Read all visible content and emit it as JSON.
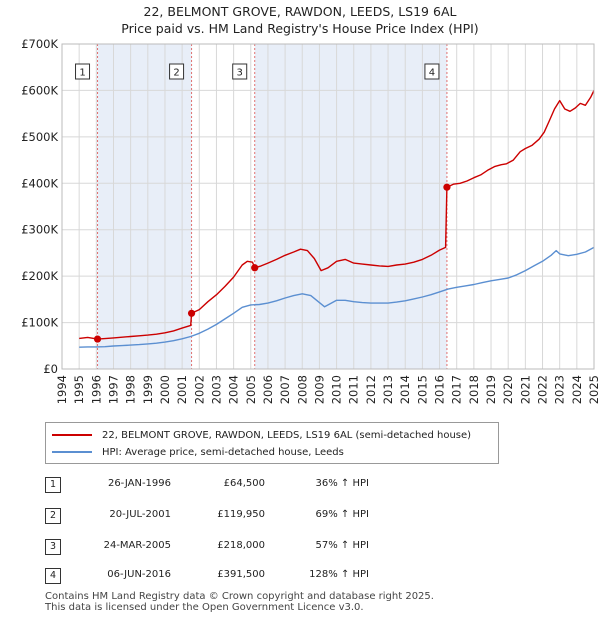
{
  "title_line1": "22, BELMONT GROVE, RAWDON, LEEDS, LS19 6AL",
  "title_line2": "Price paid vs. HM Land Registry's House Price Index (HPI)",
  "legend": {
    "property_label": "22, BELMONT GROVE, RAWDON, LEEDS, LS19 6AL (semi-detached house)",
    "hpi_label": "HPI: Average price, semi-detached house, Leeds"
  },
  "colors": {
    "property": "#cc0000",
    "hpi": "#5b8fd1",
    "shade": "#e8eef8",
    "marker_line": "#e07070"
  },
  "transactions": [
    {
      "num": "1",
      "date": "26-JAN-1996",
      "price": "£64,500",
      "hpi": "36% ↑ HPI"
    },
    {
      "num": "2",
      "date": "20-JUL-2001",
      "price": "£119,950",
      "hpi": "69% ↑ HPI"
    },
    {
      "num": "3",
      "date": "24-MAR-2005",
      "price": "£218,000",
      "hpi": "57% ↑ HPI"
    },
    {
      "num": "4",
      "date": "06-JUN-2016",
      "price": "£391,500",
      "hpi": "128% ↑ HPI"
    }
  ],
  "footer_line1": "Contains HM Land Registry data © Crown copyright and database right 2025.",
  "footer_line2": "This data is licensed under the Open Government Licence v3.0.",
  "chart_data": {
    "type": "line",
    "title": "Price paid vs. HM Land Registry's House Price Index (HPI)",
    "xlabel": "",
    "ylabel": "",
    "xlim": [
      1994,
      2025
    ],
    "ylim": [
      0,
      700000
    ],
    "x_ticks": [
      "1994",
      "1995",
      "1996",
      "1997",
      "1998",
      "1999",
      "2000",
      "2001",
      "2002",
      "2003",
      "2004",
      "2005",
      "2006",
      "2007",
      "2008",
      "2009",
      "2010",
      "2011",
      "2012",
      "2013",
      "2014",
      "2015",
      "2016",
      "2017",
      "2018",
      "2019",
      "2020",
      "2021",
      "2022",
      "2023",
      "2024",
      "2025"
    ],
    "y_ticks": [
      {
        "value": 0,
        "label": "£0"
      },
      {
        "value": 100000,
        "label": "£100K"
      },
      {
        "value": 200000,
        "label": "£200K"
      },
      {
        "value": 300000,
        "label": "£300K"
      },
      {
        "value": 400000,
        "label": "£400K"
      },
      {
        "value": 500000,
        "label": "£500K"
      },
      {
        "value": 600000,
        "label": "£600K"
      },
      {
        "value": 700000,
        "label": "£700K"
      }
    ],
    "sales": [
      {
        "label": "1",
        "x": 1996.07,
        "y": 64500
      },
      {
        "label": "2",
        "x": 2001.55,
        "y": 119950
      },
      {
        "label": "3",
        "x": 2005.23,
        "y": 218000
      },
      {
        "label": "4",
        "x": 2016.43,
        "y": 391500
      }
    ],
    "series": [
      {
        "name": "22, BELMONT GROVE, RAWDON, LEEDS, LS19 6AL (semi-detached house)",
        "points": [
          [
            1995.0,
            66000
          ],
          [
            1995.5,
            68000
          ],
          [
            1996.07,
            64500
          ],
          [
            1996.5,
            65500
          ],
          [
            1997.0,
            67000
          ],
          [
            1997.5,
            68500
          ],
          [
            1998.0,
            70000
          ],
          [
            1998.5,
            71500
          ],
          [
            1999.0,
            73000
          ],
          [
            1999.5,
            75000
          ],
          [
            2000.0,
            78000
          ],
          [
            2000.5,
            82000
          ],
          [
            2001.0,
            88000
          ],
          [
            2001.5,
            94000
          ],
          [
            2001.55,
            119950
          ],
          [
            2002.0,
            128000
          ],
          [
            2002.5,
            145000
          ],
          [
            2003.0,
            160000
          ],
          [
            2003.5,
            178000
          ],
          [
            2004.0,
            198000
          ],
          [
            2004.5,
            224000
          ],
          [
            2004.8,
            232000
          ],
          [
            2005.1,
            230000
          ],
          [
            2005.23,
            218000
          ],
          [
            2005.6,
            222000
          ],
          [
            2006.0,
            228000
          ],
          [
            2006.5,
            236000
          ],
          [
            2007.0,
            245000
          ],
          [
            2007.5,
            252000
          ],
          [
            2007.9,
            258000
          ],
          [
            2008.3,
            255000
          ],
          [
            2008.7,
            238000
          ],
          [
            2009.1,
            212000
          ],
          [
            2009.5,
            218000
          ],
          [
            2010.0,
            232000
          ],
          [
            2010.5,
            236000
          ],
          [
            2011.0,
            228000
          ],
          [
            2011.5,
            226000
          ],
          [
            2012.0,
            224000
          ],
          [
            2012.5,
            222000
          ],
          [
            2013.0,
            221000
          ],
          [
            2013.5,
            224000
          ],
          [
            2014.0,
            226000
          ],
          [
            2014.5,
            230000
          ],
          [
            2015.0,
            236000
          ],
          [
            2015.5,
            245000
          ],
          [
            2016.0,
            256000
          ],
          [
            2016.35,
            262000
          ],
          [
            2016.43,
            391500
          ],
          [
            2016.8,
            398000
          ],
          [
            2017.2,
            400000
          ],
          [
            2017.6,
            405000
          ],
          [
            2018.0,
            412000
          ],
          [
            2018.4,
            418000
          ],
          [
            2018.8,
            428000
          ],
          [
            2019.2,
            436000
          ],
          [
            2019.6,
            440000
          ],
          [
            2019.9,
            442000
          ],
          [
            2020.3,
            450000
          ],
          [
            2020.7,
            468000
          ],
          [
            2021.0,
            475000
          ],
          [
            2021.4,
            482000
          ],
          [
            2021.8,
            495000
          ],
          [
            2022.1,
            510000
          ],
          [
            2022.4,
            535000
          ],
          [
            2022.7,
            560000
          ],
          [
            2023.0,
            578000
          ],
          [
            2023.3,
            560000
          ],
          [
            2023.6,
            555000
          ],
          [
            2023.9,
            562000
          ],
          [
            2024.2,
            572000
          ],
          [
            2024.5,
            568000
          ],
          [
            2024.8,
            585000
          ],
          [
            2025.0,
            600000
          ]
        ]
      },
      {
        "name": "HPI: Average price, semi-detached house, Leeds",
        "points": [
          [
            1995.0,
            47000
          ],
          [
            1995.5,
            47500
          ],
          [
            1996.0,
            47500
          ],
          [
            1996.5,
            48000
          ],
          [
            1997.0,
            49500
          ],
          [
            1997.5,
            50500
          ],
          [
            1998.0,
            51500
          ],
          [
            1998.5,
            52500
          ],
          [
            1999.0,
            54000
          ],
          [
            1999.5,
            55500
          ],
          [
            2000.0,
            58000
          ],
          [
            2000.5,
            61000
          ],
          [
            2001.0,
            65000
          ],
          [
            2001.5,
            70000
          ],
          [
            2002.0,
            77000
          ],
          [
            2002.5,
            86000
          ],
          [
            2003.0,
            96000
          ],
          [
            2003.5,
            108000
          ],
          [
            2004.0,
            120000
          ],
          [
            2004.5,
            133000
          ],
          [
            2005.0,
            138000
          ],
          [
            2005.5,
            139000
          ],
          [
            2006.0,
            142000
          ],
          [
            2006.5,
            147000
          ],
          [
            2007.0,
            153000
          ],
          [
            2007.5,
            158000
          ],
          [
            2008.0,
            162000
          ],
          [
            2008.5,
            158000
          ],
          [
            2009.0,
            143000
          ],
          [
            2009.3,
            134000
          ],
          [
            2009.6,
            140000
          ],
          [
            2010.0,
            148000
          ],
          [
            2010.5,
            148000
          ],
          [
            2011.0,
            145000
          ],
          [
            2011.5,
            143000
          ],
          [
            2012.0,
            142000
          ],
          [
            2012.5,
            142000
          ],
          [
            2013.0,
            142000
          ],
          [
            2013.5,
            144000
          ],
          [
            2014.0,
            147000
          ],
          [
            2014.5,
            151000
          ],
          [
            2015.0,
            155000
          ],
          [
            2015.5,
            160000
          ],
          [
            2016.0,
            166000
          ],
          [
            2016.5,
            172000
          ],
          [
            2017.0,
            176000
          ],
          [
            2017.5,
            179000
          ],
          [
            2018.0,
            182000
          ],
          [
            2018.5,
            186000
          ],
          [
            2019.0,
            190000
          ],
          [
            2019.5,
            193000
          ],
          [
            2020.0,
            196000
          ],
          [
            2020.5,
            203000
          ],
          [
            2021.0,
            212000
          ],
          [
            2021.5,
            222000
          ],
          [
            2022.0,
            232000
          ],
          [
            2022.5,
            245000
          ],
          [
            2022.8,
            255000
          ],
          [
            2023.0,
            248000
          ],
          [
            2023.5,
            244000
          ],
          [
            2024.0,
            247000
          ],
          [
            2024.5,
            252000
          ],
          [
            2025.0,
            262000
          ]
        ]
      }
    ]
  }
}
